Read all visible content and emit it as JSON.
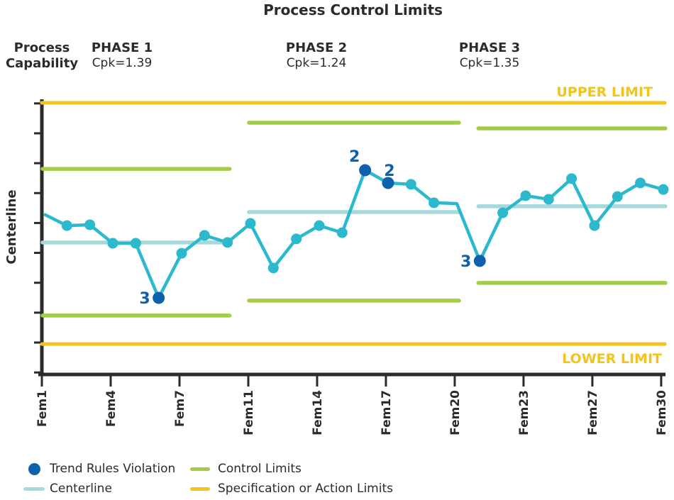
{
  "title": "Process Control Limits",
  "header": {
    "capability_line1": "Process",
    "capability_line2": "Capability",
    "phases": [
      {
        "name": "PHASE 1",
        "cpk": "Cpk=1.39"
      },
      {
        "name": "PHASE 2",
        "cpk": "Cpk=1.24"
      },
      {
        "name": "PHASE 3",
        "cpk": "Cpk=1.35"
      }
    ]
  },
  "colors": {
    "data_line": "#2cb9ce",
    "centerline": "#a6d9db",
    "control_limits": "#a3cc47",
    "spec_limits": "#f3c51c",
    "violation_marker": "#1061ab",
    "axis": "#2b2b2b",
    "text": "#2b2b2b"
  },
  "chart_data": {
    "type": "line",
    "title": "Process Control Limits",
    "ylabel": "Centerline",
    "xlabel": "",
    "ylim": [
      0,
      100
    ],
    "value_scale_note": "arbitrary 0-100 scale; y axis has unlabeled ticks only",
    "upper_spec": {
      "label": "UPPER LIMIT",
      "value": 100
    },
    "lower_spec": {
      "label": "LOWER LIMIT",
      "value": 11.2
    },
    "x_ticks": [
      {
        "index": 0,
        "label": "Fem1"
      },
      {
        "index": 3,
        "label": "Fem4"
      },
      {
        "index": 6,
        "label": "Fem7"
      },
      {
        "index": 9,
        "label": "Fem11"
      },
      {
        "index": 12,
        "label": "Fem14"
      },
      {
        "index": 15,
        "label": "Fem17"
      },
      {
        "index": 18,
        "label": "Fem20"
      },
      {
        "index": 21,
        "label": "Fem23"
      },
      {
        "index": 24,
        "label": "Fem27"
      },
      {
        "index": 27,
        "label": "Fem30"
      }
    ],
    "phases": [
      {
        "name": "PHASE 1",
        "cpk": 1.39,
        "start_index": 0,
        "end_index": 8,
        "ucl": 75.7,
        "lcl": 21.7,
        "centerline": 48.6
      },
      {
        "name": "PHASE 2",
        "cpk": 1.24,
        "start_index": 9,
        "end_index": 18,
        "ucl": 92.7,
        "lcl": 27.2,
        "centerline": 59.8
      },
      {
        "name": "PHASE 3",
        "cpk": 1.35,
        "start_index": 19,
        "end_index": 27,
        "ucl": 90.6,
        "lcl": 33.7,
        "centerline": 61.9
      }
    ],
    "points": [
      {
        "value": 59.0,
        "marker": false
      },
      {
        "value": 54.8,
        "marker": true
      },
      {
        "value": 55.1,
        "marker": true
      },
      {
        "value": 48.3,
        "marker": true
      },
      {
        "value": 48.3,
        "marker": true
      },
      {
        "value": 28.2,
        "marker": true,
        "violation": "3",
        "label_pos": "left"
      },
      {
        "value": 44.6,
        "marker": true
      },
      {
        "value": 51.2,
        "marker": true
      },
      {
        "value": 48.6,
        "marker": true
      },
      {
        "value": 55.6,
        "marker": true
      },
      {
        "value": 39.2,
        "marker": true
      },
      {
        "value": 49.9,
        "marker": true
      },
      {
        "value": 54.8,
        "marker": true
      },
      {
        "value": 52.2,
        "marker": true
      },
      {
        "value": 75.2,
        "marker": true,
        "violation": "2",
        "label_pos": "above-left"
      },
      {
        "value": 70.5,
        "marker": true,
        "violation": "2",
        "label_pos": "above"
      },
      {
        "value": 70.0,
        "marker": true
      },
      {
        "value": 63.2,
        "marker": true
      },
      {
        "value": 62.9,
        "marker": false
      },
      {
        "value": 41.8,
        "marker": true,
        "violation": "3",
        "label_pos": "left"
      },
      {
        "value": 59.5,
        "marker": true
      },
      {
        "value": 65.8,
        "marker": true
      },
      {
        "value": 64.5,
        "marker": true
      },
      {
        "value": 72.1,
        "marker": true
      },
      {
        "value": 54.8,
        "marker": true
      },
      {
        "value": 65.5,
        "marker": true
      },
      {
        "value": 70.5,
        "marker": true
      },
      {
        "value": 68.1,
        "marker": true
      }
    ]
  },
  "legend": {
    "items": [
      {
        "label": "Trend Rules Violation",
        "swatch": "dot",
        "color": "#1061ab"
      },
      {
        "label": "Centerline",
        "swatch": "line",
        "color": "#a6d9db"
      },
      {
        "label": "Control Limits",
        "swatch": "line",
        "color": "#a3cc47"
      },
      {
        "label": "Specification or Action Limits",
        "swatch": "line",
        "color": "#f3c51c"
      }
    ]
  }
}
